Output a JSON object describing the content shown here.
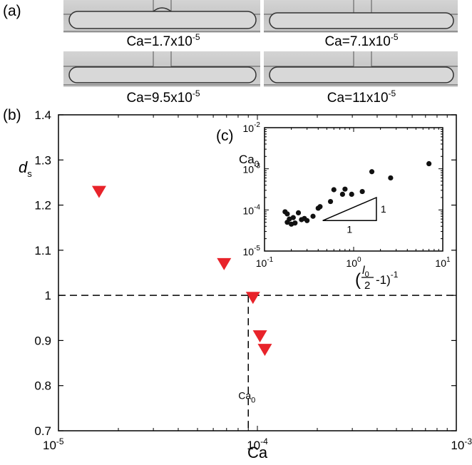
{
  "panel_a": {
    "label": "(a)",
    "photos": [
      {
        "caption": "Ca=1.7x10",
        "exp": "-5"
      },
      {
        "caption": "Ca=7.1x10",
        "exp": "-5"
      },
      {
        "caption": "Ca=9.5x10",
        "exp": "-5"
      },
      {
        "caption": "Ca=11x10",
        "exp": "-5"
      }
    ]
  },
  "chart_data": [
    {
      "panel_label": "(b)",
      "type": "scatter",
      "xscale": "log",
      "xlim": [
        1e-05,
        0.001
      ],
      "ylim": [
        0.7,
        1.4
      ],
      "xlabel": "Ca",
      "ylabel": {
        "main": "d",
        "sub": "s"
      },
      "yticks": [
        "0.7",
        "0.8",
        "0.9",
        "1",
        "1.1",
        "1.2",
        "1.3",
        "1.4"
      ],
      "xticks": [
        {
          "base": "10",
          "exp": "-5"
        },
        {
          "base": "10",
          "exp": "-4"
        },
        {
          "base": "10",
          "exp": "-3"
        }
      ],
      "marker": "triangle-down",
      "marker_color": "#e8232a",
      "series": [
        {
          "x": [
            1.6e-05,
            6.8e-05,
            9.5e-05,
            0.000103,
            0.000109
          ],
          "y": [
            1.23,
            1.07,
            0.995,
            0.91,
            0.88
          ]
        }
      ],
      "annotations": {
        "hline_y": 1.0,
        "vline_x": 9e-05,
        "vline_label": {
          "main": "Ca",
          "sub": "0"
        }
      }
    },
    {
      "panel_label": "(c)",
      "type": "scatter",
      "xscale": "log",
      "yscale": "log",
      "xlim": [
        0.1,
        10
      ],
      "ylim": [
        1e-05,
        0.01
      ],
      "ylabel": {
        "main": "Ca",
        "sub": "0"
      },
      "xlabel": {
        "paren_open": "(",
        "numer": "l",
        "numer_sub": "0",
        "denom": "2",
        "tail": "-1)",
        "exp": "-1"
      },
      "xticks": [
        {
          "base": "10",
          "exp": "-1"
        },
        {
          "base": "10",
          "exp": "0"
        },
        {
          "base": "10",
          "exp": "1"
        }
      ],
      "yticks": [
        {
          "base": "10",
          "exp": "-5"
        },
        {
          "base": "10",
          "exp": "-4"
        },
        {
          "base": "10",
          "exp": "-3"
        },
        {
          "base": "10",
          "exp": "-2"
        }
      ],
      "marker_color": "#111111",
      "series": [
        {
          "x": [
            0.17,
            0.18,
            0.18,
            0.19,
            0.2,
            0.21,
            0.22,
            0.24,
            0.26,
            0.28,
            0.3,
            0.35,
            0.4,
            0.42,
            0.55,
            0.6,
            0.75,
            0.8,
            0.95,
            1.25,
            1.6,
            2.6,
            7.0
          ],
          "y": [
            9e-05,
            8e-05,
            5e-05,
            6e-05,
            4.5e-05,
            6.5e-05,
            4.8e-05,
            8.5e-05,
            5.8e-05,
            6.2e-05,
            5.5e-05,
            7e-05,
            0.00011,
            0.00012,
            0.00016,
            0.00031,
            0.00024,
            0.00032,
            0.00024,
            0.00028,
            0.00085,
            0.0006,
            0.00133
          ]
        }
      ],
      "slope_triangle": {
        "x": [
          0.45,
          1.8
        ],
        "y": [
          5.5e-05,
          0.0002
        ],
        "run_label": "1",
        "rise_label": "1"
      }
    }
  ]
}
